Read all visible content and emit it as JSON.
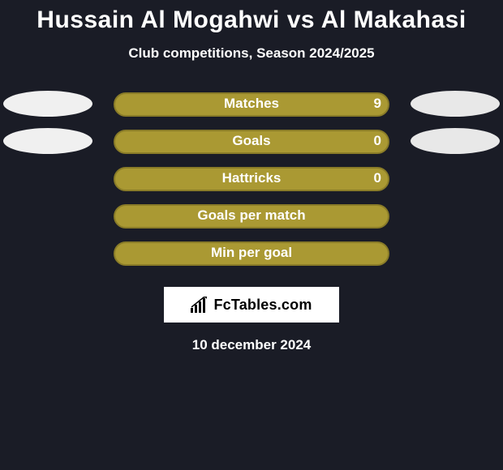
{
  "title": "Hussain Al Mogahwi vs Al Makahasi",
  "subtitle": "Club competitions, Season 2024/2025",
  "date": "10 december 2024",
  "logo_text": "FcTables.com",
  "colors": {
    "background": "#1a1c26",
    "bar_fill": "#aa9933",
    "bar_border": "#8a7c28",
    "pill_left": "#f0f0f0",
    "pill_right": "#e8e8e8",
    "text": "#ffffff"
  },
  "rows": [
    {
      "label": "Matches",
      "value": "9",
      "show_value": true,
      "left_pill": true,
      "right_pill": true
    },
    {
      "label": "Goals",
      "value": "0",
      "show_value": true,
      "left_pill": true,
      "right_pill": true
    },
    {
      "label": "Hattricks",
      "value": "0",
      "show_value": true,
      "left_pill": false,
      "right_pill": false
    },
    {
      "label": "Goals per match",
      "value": "",
      "show_value": false,
      "left_pill": false,
      "right_pill": false
    },
    {
      "label": "Min per goal",
      "value": "",
      "show_value": false,
      "left_pill": false,
      "right_pill": false
    }
  ]
}
